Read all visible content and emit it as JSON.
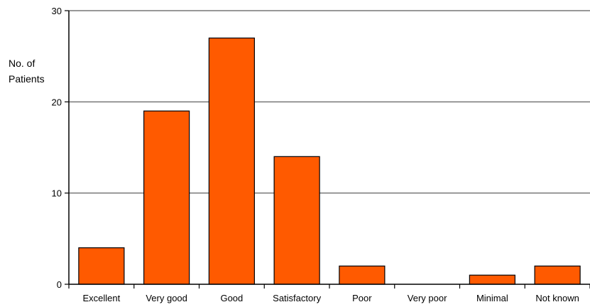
{
  "chart_data": {
    "type": "bar",
    "title": "",
    "xlabel": "",
    "ylabel_lines": [
      "No. of",
      "Patients"
    ],
    "categories": [
      "Excellent",
      "Very good",
      "Good",
      "Satisfactory",
      "Poor",
      "Very poor",
      "Minimal",
      "Not known"
    ],
    "values": [
      4,
      19,
      27,
      14,
      2,
      0,
      1,
      2
    ],
    "ylim": [
      0,
      30
    ],
    "yticks": [
      0,
      10,
      20,
      30
    ],
    "grid": true,
    "bar_color": "#ff5a00",
    "bar_edge_color": "#000000"
  }
}
